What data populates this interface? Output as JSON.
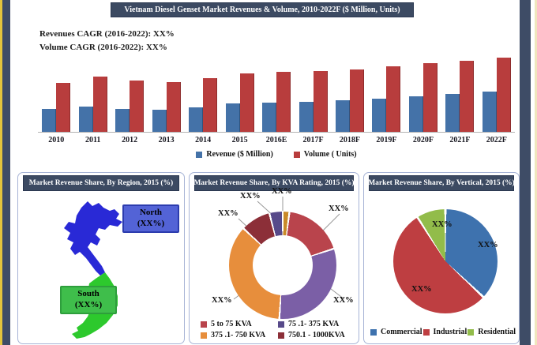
{
  "title_bar": "Vietnam Diesel Genset Market Revenues & Volume, 2010-2022F ($ Million, Units)",
  "cagr": {
    "revenues": "Revenues CAGR (2016-2022): XX%",
    "volume": "Volume CAGR (2016-2022): XX%"
  },
  "panels": {
    "region_header": "Market Revenue Share, By Region, 2015 (%)",
    "kva_header": "Market Revenue Share, By KVA Rating, 2015 (%)",
    "vertical_header": "Market Revenue Share, By Vertical, 2015 (%)"
  },
  "colors": {
    "header_navy": "#3c4a62",
    "frame_navy": "#3e4c66",
    "frame_yellow": "#e3c43c",
    "bar_revenue_blue": "#4472a8",
    "bar_volume_red": "#b83d3d",
    "map_north_blue": "#2929d6",
    "map_south_green": "#2dc92d"
  },
  "chart_data": [
    {
      "type": "bar",
      "title": "Vietnam Diesel Genset Market Revenues & Volume, 2010-2022F ($ Million, Units)",
      "categories": [
        "2010",
        "2011",
        "2012",
        "2013",
        "2014",
        "2015",
        "2016E",
        "2017F",
        "2018F",
        "2019F",
        "2020F",
        "2021F",
        "2022F"
      ],
      "series": [
        {
          "name": "Revenue ($ Million)",
          "color": "#4472a8",
          "values": [
            29,
            32,
            29,
            28,
            31,
            36,
            37,
            38,
            40,
            42,
            45,
            48,
            51
          ]
        },
        {
          "name": "Volume ( Units)",
          "color": "#b83d3d",
          "values": [
            62,
            70,
            65,
            63,
            68,
            74,
            76,
            77,
            79,
            83,
            87,
            90,
            94
          ]
        }
      ],
      "note": "No numeric axis is shown in the figure; values are relative bar heights estimated from pixels",
      "ylim": [
        0,
        100
      ],
      "grid": false,
      "legend_position": "bottom"
    },
    {
      "type": "donut",
      "title": "Market Revenue Share, By KVA Rating, 2015 (%)",
      "segments": [
        {
          "name": "sliver-gold",
          "label": "XX%",
          "value": 2,
          "color": "#c98a28"
        },
        {
          "name": "5 to 75 KVA",
          "label": "XX%",
          "value": 18,
          "color": "#b9444c"
        },
        {
          "name": "75 .1- 375 KVA",
          "label": "XX%",
          "value": 31,
          "color": "#7b5fa6"
        },
        {
          "name": "375 .1- 750 KVA",
          "label": "XX%",
          "value": 36,
          "color": "#e78e3c"
        },
        {
          "name": "750.1 - 1000KVA",
          "label": "XX%",
          "value": 9,
          "color": "#8c2f38"
        },
        {
          "name": "sliver-purple",
          "label": "XX%",
          "value": 4,
          "color": "#574a8a"
        }
      ],
      "legend": [
        {
          "label": "5 to 75 KVA",
          "color": "#b9444c"
        },
        {
          "label": "75 .1- 375 KVA",
          "color": "#574a8a"
        },
        {
          "label": "375 .1- 750 KVA",
          "color": "#e78e3c"
        },
        {
          "label": "750.1 - 1000KVA",
          "color": "#8c2f38"
        }
      ],
      "legend_position": "bottom"
    },
    {
      "type": "pie",
      "title": "Market Revenue Share, By Vertical, 2015 (%)",
      "slices": [
        {
          "name": "Commercial",
          "label": "XX%",
          "value": 37,
          "color": "#3e72ae"
        },
        {
          "name": "Industrial",
          "label": "XX%",
          "value": 54,
          "color": "#be3e41"
        },
        {
          "name": "Residential",
          "label": "XX%",
          "value": 9,
          "color": "#92bc4a"
        }
      ],
      "legend_position": "bottom"
    },
    {
      "type": "map",
      "title": "Market Revenue Share, By Region, 2015 (%)",
      "regions": [
        {
          "name": "North",
          "label": "North",
          "share": "(XX%)",
          "color": "#2929d6"
        },
        {
          "name": "South",
          "label": "South",
          "share": "(XX%)",
          "color": "#2dc92d"
        }
      ]
    }
  ]
}
